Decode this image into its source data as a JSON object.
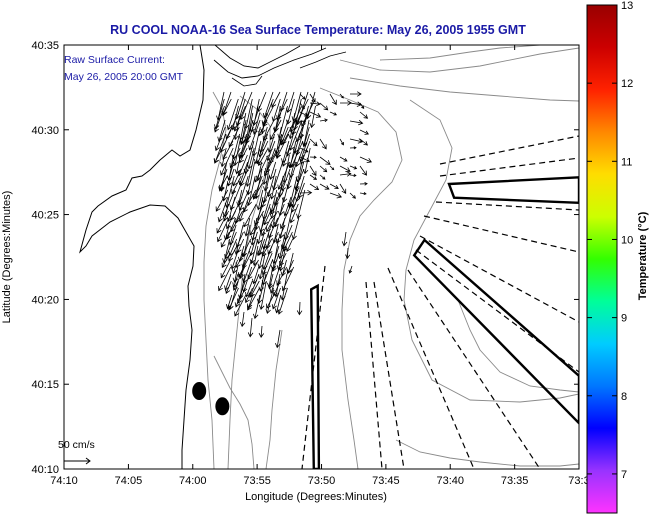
{
  "chart_data": {
    "type": "map",
    "title": "RU COOL  NOAA-16  Sea Surface Temperature:  May 26, 2005 1955 GMT",
    "annotations": {
      "current_label": "Raw Surface Current:",
      "current_time": "May 26, 2005 20:00 GMT",
      "scale_label": "50 cm/s"
    },
    "xlabel": "Longitude (Degrees:Minutes)",
    "ylabel": "Latitude (Degrees:Minutes)",
    "xlim": [
      -74.1667,
      -73.5
    ],
    "ylim": [
      40.1667,
      40.5833
    ],
    "x_ticks": [
      {
        "value": -74.1667,
        "label": "74:10"
      },
      {
        "value": -74.0833,
        "label": "74:05"
      },
      {
        "value": -74.0,
        "label": "74:00"
      },
      {
        "value": -73.9167,
        "label": "73:55"
      },
      {
        "value": -73.8333,
        "label": "73:50"
      },
      {
        "value": -73.75,
        "label": "73:45"
      },
      {
        "value": -73.6667,
        "label": "73:40"
      },
      {
        "value": -73.5833,
        "label": "73:35"
      },
      {
        "value": -73.5,
        "label": "73:3"
      }
    ],
    "y_ticks": [
      {
        "value": 40.5833,
        "label": "40:35"
      },
      {
        "value": 40.5,
        "label": "40:30"
      },
      {
        "value": 40.4167,
        "label": "40:25"
      },
      {
        "value": 40.3333,
        "label": "40:20"
      },
      {
        "value": 40.25,
        "label": "40:15"
      },
      {
        "value": 40.1667,
        "label": "40:10"
      }
    ],
    "colorbar": {
      "label": "Temperature (°C)",
      "min": 6.5,
      "max": 13,
      "ticks": [
        {
          "value": 7,
          "label": "7"
        },
        {
          "value": 8,
          "label": "8"
        },
        {
          "value": 9,
          "label": "9"
        },
        {
          "value": 10,
          "label": "10"
        },
        {
          "value": 11,
          "label": "11"
        },
        {
          "value": 12,
          "label": "12"
        },
        {
          "value": 13,
          "label": "13"
        }
      ],
      "colors": [
        "#ff33ff",
        "#9933ff",
        "#0000ff",
        "#0077ff",
        "#00ccff",
        "#00ff99",
        "#33ff00",
        "#ccff00",
        "#ffdd00",
        "#ff8800",
        "#ff2200",
        "#cc0000",
        "#990000"
      ]
    },
    "markers": [
      {
        "name": "marker-1",
        "lon": -73.9917,
        "lat": 40.2433
      },
      {
        "name": "marker-2",
        "lon": -73.9617,
        "lat": 40.2283
      }
    ],
    "boxes": [
      {
        "name": "box-1",
        "points": [
          [
            -73.8433,
            40.1667
          ],
          [
            -73.8367,
            40.1667
          ],
          [
            -73.8383,
            40.3467
          ],
          [
            -73.8467,
            40.3433
          ]
        ]
      },
      {
        "name": "box-2",
        "points": [
          [
            -73.6683,
            40.4467
          ],
          [
            -73.5,
            40.4533
          ],
          [
            -73.5,
            40.4283
          ],
          [
            -73.6617,
            40.4333
          ]
        ]
      },
      {
        "name": "box-3",
        "points": [
          [
            -73.7133,
            40.3767
          ],
          [
            -73.5,
            40.2117
          ],
          [
            -73.5,
            40.2583
          ],
          [
            -73.7,
            40.3917
          ]
        ]
      }
    ]
  }
}
